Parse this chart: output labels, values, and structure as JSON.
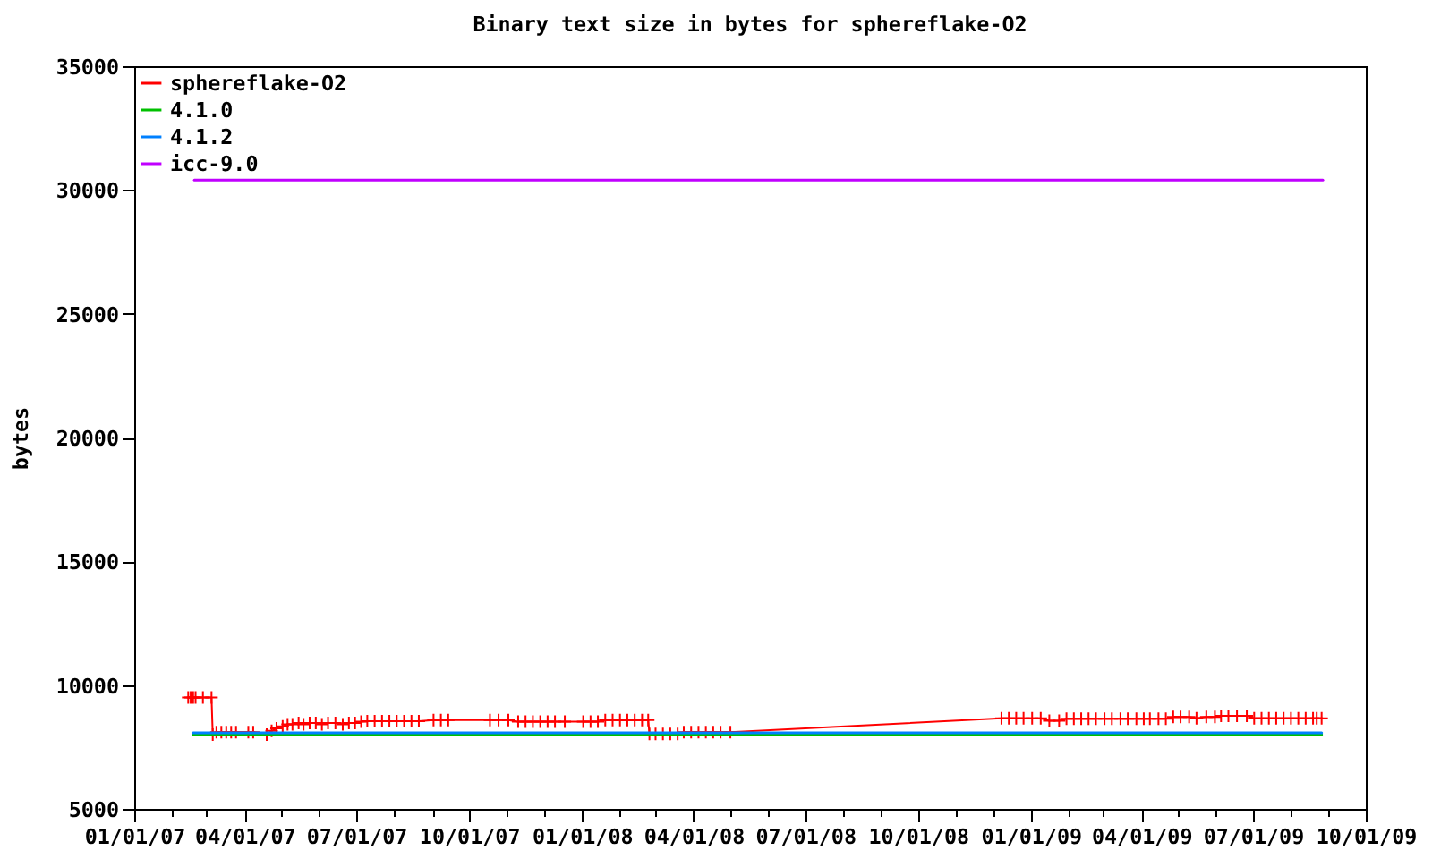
{
  "chart_data": {
    "type": "line",
    "title": "Binary text size in bytes for sphereflake-O2",
    "ylabel": "bytes",
    "xlim": [
      "2007-01-01",
      "2009-10-01"
    ],
    "xticks": [
      {
        "value": "2007-01-01",
        "label": "01/01/07"
      },
      {
        "value": "2007-02-01",
        "label": null
      },
      {
        "value": "2007-03-01",
        "label": null
      },
      {
        "value": "2007-04-01",
        "label": "04/01/07"
      },
      {
        "value": "2007-05-01",
        "label": null
      },
      {
        "value": "2007-06-01",
        "label": null
      },
      {
        "value": "2007-07-01",
        "label": "07/01/07"
      },
      {
        "value": "2007-08-01",
        "label": null
      },
      {
        "value": "2007-09-01",
        "label": null
      },
      {
        "value": "2007-10-01",
        "label": "10/01/07"
      },
      {
        "value": "2007-11-01",
        "label": null
      },
      {
        "value": "2007-12-01",
        "label": null
      },
      {
        "value": "2008-01-01",
        "label": "01/01/08"
      },
      {
        "value": "2008-02-01",
        "label": null
      },
      {
        "value": "2008-03-01",
        "label": null
      },
      {
        "value": "2008-04-01",
        "label": "04/01/08"
      },
      {
        "value": "2008-05-01",
        "label": null
      },
      {
        "value": "2008-06-01",
        "label": null
      },
      {
        "value": "2008-07-01",
        "label": "07/01/08"
      },
      {
        "value": "2008-08-01",
        "label": null
      },
      {
        "value": "2008-09-01",
        "label": null
      },
      {
        "value": "2008-10-01",
        "label": "10/01/08"
      },
      {
        "value": "2008-11-01",
        "label": null
      },
      {
        "value": "2008-12-01",
        "label": null
      },
      {
        "value": "2009-01-01",
        "label": "01/01/09"
      },
      {
        "value": "2009-02-01",
        "label": null
      },
      {
        "value": "2009-03-01",
        "label": null
      },
      {
        "value": "2009-04-01",
        "label": "04/01/09"
      },
      {
        "value": "2009-05-01",
        "label": null
      },
      {
        "value": "2009-06-01",
        "label": null
      },
      {
        "value": "2009-07-01",
        "label": "07/01/09"
      },
      {
        "value": "2009-08-01",
        "label": null
      },
      {
        "value": "2009-09-01",
        "label": null
      },
      {
        "value": "2009-10-01",
        "label": "10/01/09"
      }
    ],
    "ylim": [
      5000,
      35000
    ],
    "yticks": [
      5000,
      10000,
      15000,
      20000,
      25000,
      30000,
      35000
    ],
    "legend": "top left",
    "line_style": "solid",
    "series": [
      {
        "name": "sphereflake-O2",
        "color": "#ff0000",
        "marker": "cross",
        "x": [
          "2007-02-14",
          "2007-02-16",
          "2007-02-18",
          "2007-02-20",
          "2007-02-26",
          "2007-03-05",
          "2007-03-06",
          "2007-03-09",
          "2007-03-13",
          "2007-03-17",
          "2007-03-21",
          "2007-03-25",
          "2007-04-04",
          "2007-04-08",
          "2007-04-19",
          "2007-04-23",
          "2007-04-27",
          "2007-05-02",
          "2007-05-06",
          "2007-05-10",
          "2007-05-15",
          "2007-05-19",
          "2007-05-24",
          "2007-05-29",
          "2007-06-03",
          "2007-06-08",
          "2007-06-14",
          "2007-06-20",
          "2007-06-25",
          "2007-06-30",
          "2007-07-05",
          "2007-07-10",
          "2007-07-16",
          "2007-07-22",
          "2007-07-28",
          "2007-08-03",
          "2007-08-09",
          "2007-08-15",
          "2007-08-21",
          "2007-09-02",
          "2007-09-08",
          "2007-09-14",
          "2007-10-18",
          "2007-10-25",
          "2007-11-02",
          "2007-11-10",
          "2007-11-16",
          "2007-11-22",
          "2007-11-28",
          "2007-12-04",
          "2007-12-10",
          "2007-12-18",
          "2008-01-02",
          "2008-01-08",
          "2008-01-14",
          "2008-01-20",
          "2008-01-26",
          "2008-02-01",
          "2008-02-07",
          "2008-02-13",
          "2008-02-19",
          "2008-02-24",
          "2008-02-25",
          "2008-03-01",
          "2008-03-07",
          "2008-03-13",
          "2008-03-19",
          "2008-03-24",
          "2008-03-30",
          "2008-04-05",
          "2008-04-11",
          "2008-04-17",
          "2008-04-23",
          "2008-05-01",
          "2008-12-08",
          "2008-12-14",
          "2008-12-20",
          "2008-12-26",
          "2009-01-02",
          "2009-01-09",
          "2009-01-16",
          "2009-01-24",
          "2009-01-30",
          "2009-02-05",
          "2009-02-11",
          "2009-02-17",
          "2009-02-23",
          "2009-03-02",
          "2009-03-08",
          "2009-03-15",
          "2009-03-21",
          "2009-03-28",
          "2009-04-03",
          "2009-04-08",
          "2009-04-15",
          "2009-04-21",
          "2009-04-27",
          "2009-05-03",
          "2009-05-10",
          "2009-05-16",
          "2009-05-24",
          "2009-05-31",
          "2009-06-05",
          "2009-06-11",
          "2009-06-18",
          "2009-06-26",
          "2009-07-02",
          "2009-07-08",
          "2009-07-14",
          "2009-07-20",
          "2009-07-26",
          "2009-08-01",
          "2009-08-07",
          "2009-08-13",
          "2009-08-19",
          "2009-08-22",
          "2009-08-26"
        ],
        "values": [
          9500,
          9500,
          9500,
          9500,
          9500,
          9500,
          8000,
          8100,
          8100,
          8100,
          8100,
          8100,
          8100,
          8100,
          8000,
          8150,
          8250,
          8330,
          8420,
          8420,
          8470,
          8420,
          8470,
          8470,
          8420,
          8470,
          8470,
          8420,
          8470,
          8470,
          8520,
          8540,
          8540,
          8540,
          8540,
          8540,
          8540,
          8540,
          8540,
          8590,
          8590,
          8590,
          8590,
          8590,
          8590,
          8520,
          8520,
          8520,
          8520,
          8520,
          8520,
          8520,
          8520,
          8520,
          8520,
          8590,
          8590,
          8590,
          8590,
          8590,
          8590,
          8590,
          8030,
          8030,
          8030,
          8030,
          8030,
          8100,
          8100,
          8100,
          8100,
          8100,
          8100,
          8100,
          8660,
          8660,
          8660,
          8660,
          8660,
          8660,
          8560,
          8560,
          8640,
          8640,
          8640,
          8640,
          8640,
          8640,
          8640,
          8640,
          8640,
          8640,
          8640,
          8640,
          8640,
          8640,
          8710,
          8710,
          8710,
          8660,
          8710,
          8710,
          8760,
          8760,
          8760,
          8760,
          8660,
          8660,
          8660,
          8660,
          8660,
          8660,
          8660,
          8660,
          8660,
          8660,
          8660
        ]
      },
      {
        "name": "4.1.0",
        "color": "#00c000",
        "marker": "none",
        "x": [
          "2007-02-18",
          "2009-08-26"
        ],
        "values": [
          8000,
          8000
        ]
      },
      {
        "name": "4.1.2",
        "color": "#0080ff",
        "marker": "none",
        "x": [
          "2007-02-18",
          "2009-08-26"
        ],
        "values": [
          8070,
          8070
        ]
      },
      {
        "name": "icc-9.0",
        "color": "#c000ff",
        "marker": "none",
        "x": [
          "2007-02-19",
          "2009-08-27"
        ],
        "values": [
          30400,
          30400
        ]
      }
    ]
  }
}
